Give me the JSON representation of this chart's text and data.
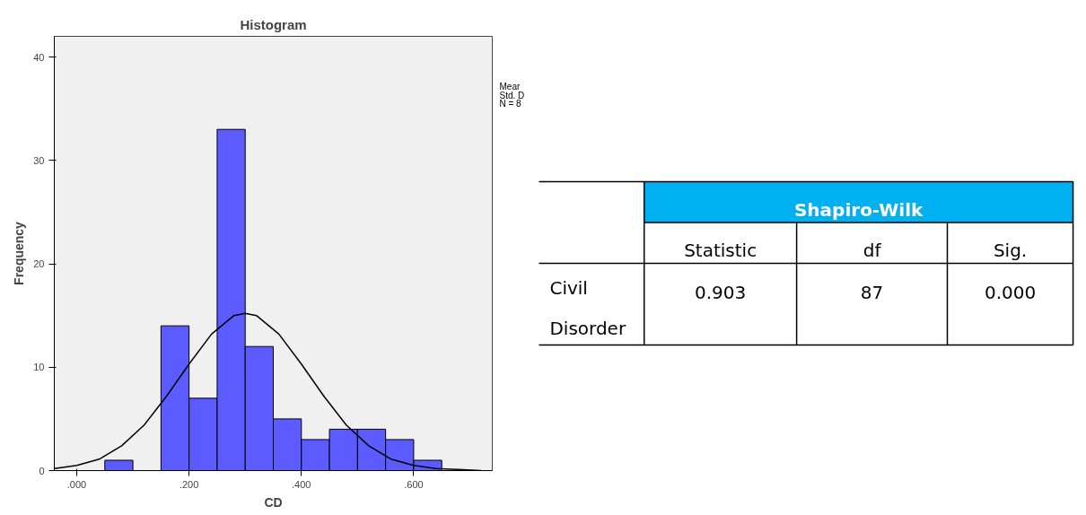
{
  "chart_data": [
    {
      "type": "histogram",
      "title": "Histogram",
      "xlabel": "CD",
      "ylabel": "Frequency",
      "bins": [
        0.05,
        0.1,
        0.15,
        0.2,
        0.25,
        0.3,
        0.35,
        0.4,
        0.45,
        0.5,
        0.55,
        0.6,
        0.65
      ],
      "series": [
        {
          "color": "#5b5bff",
          "values": [
            1,
            0,
            14,
            7,
            33,
            12,
            5,
            3,
            4,
            4,
            3,
            1
          ]
        },
        {
          "type": "line",
          "color": "#000000",
          "x": [
            -0.04,
            0.0,
            0.04,
            0.08,
            0.12,
            0.16,
            0.2,
            0.24,
            0.28,
            0.3,
            0.32,
            0.36,
            0.4,
            0.44,
            0.48,
            0.52,
            0.56,
            0.6,
            0.64,
            0.68,
            0.72
          ],
          "values": [
            0.2,
            0.5,
            1.1,
            2.4,
            4.4,
            7.2,
            10.3,
            13.2,
            15.0,
            15.2,
            15.0,
            13.2,
            10.3,
            7.2,
            4.4,
            2.4,
            1.1,
            0.5,
            0.2,
            0.1,
            0.0
          ]
        }
      ],
      "xlim": [
        -0.04,
        0.74
      ],
      "ylim": [
        0,
        42
      ],
      "xticks": [
        {
          "value": 0,
          "label": ".000"
        },
        {
          "value": 0.2,
          "label": ".200"
        },
        {
          "value": 0.4,
          "label": ".400"
        },
        {
          "value": 0.6,
          "label": ".600"
        }
      ],
      "yticks": [
        0,
        10,
        20,
        30,
        40
      ],
      "grid": false,
      "annotations": [
        "Mear",
        "Std. D",
        "N = 8"
      ]
    },
    {
      "type": "other",
      "colors": [
        "#00b0f0"
      ],
      "annotations": [
        "Shapiro-Wilk",
        "Statistic",
        "df",
        "Sig.",
        "Civil Disorder",
        "0.903",
        "87",
        "0.000"
      ]
    }
  ]
}
